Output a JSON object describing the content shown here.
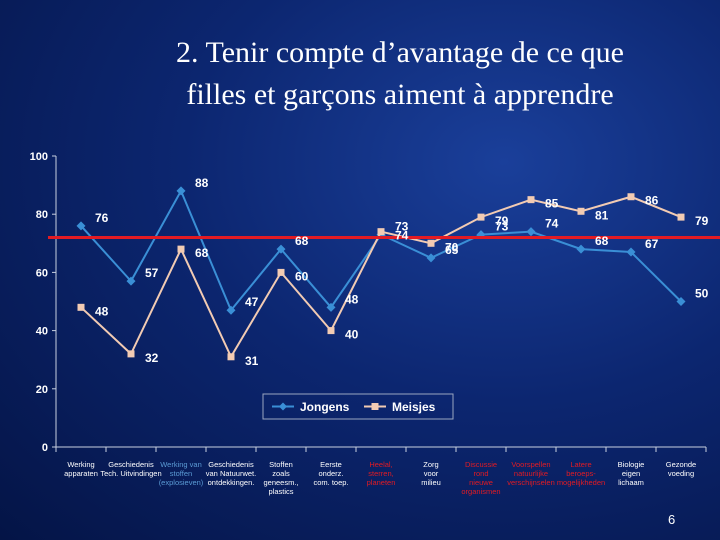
{
  "slide": {
    "title_line1": "2. Tenir compte d’avantage de ce que",
    "title_line2": "filles et garçons aiment à apprendre",
    "page_number": "6"
  },
  "chart_data": {
    "type": "line",
    "title": "",
    "xlabel": "",
    "ylabel": "",
    "ylim": [
      0,
      100
    ],
    "yticks": [
      "0",
      "20",
      "40",
      "60",
      "80",
      "100"
    ],
    "grid": false,
    "legend_position": "bottom-center",
    "reference_line": {
      "value": 72,
      "color": "#e31b23"
    },
    "categories": [
      {
        "lines": [
          "Werking",
          "apparaten"
        ],
        "color": "#ffffff"
      },
      {
        "lines": [
          "Geschiedenis",
          "Tech. Uitvindingen"
        ],
        "color": "#ffffff"
      },
      {
        "lines": [
          "Werking van",
          "stoffen",
          "(explosieven)"
        ],
        "color": "#5b9bd5"
      },
      {
        "lines": [
          "Geschiedenis",
          "van Natuurwet.",
          "ontdekkingen."
        ],
        "color": "#ffffff"
      },
      {
        "lines": [
          "Stoffen",
          "zoals",
          "geneesm.,",
          "plastics"
        ],
        "color": "#ffffff"
      },
      {
        "lines": [
          "Eerste",
          "onderz.",
          "com. toep."
        ],
        "color": "#ffffff"
      },
      {
        "lines": [
          "Heelal,",
          "sterren,",
          "planeten"
        ],
        "color": "#e31b23"
      },
      {
        "lines": [
          "Zorg",
          "voor",
          "milieu"
        ],
        "color": "#ffffff"
      },
      {
        "lines": [
          "Discussie",
          "rond",
          "nieuwe",
          "organismen"
        ],
        "color": "#e31b23"
      },
      {
        "lines": [
          "Voorspellen",
          "natuurlijke",
          "verschijnselen"
        ],
        "color": "#e31b23"
      },
      {
        "lines": [
          "Latere",
          "beroeps-",
          "mogelijkheden"
        ],
        "color": "#e31b23"
      },
      {
        "lines": [
          "Biologie",
          "eigen",
          "lichaam"
        ],
        "color": "#ffffff"
      },
      {
        "lines": [
          "Gezonde",
          "voeding"
        ],
        "color": "#ffffff"
      }
    ],
    "series": [
      {
        "name": "Jongens",
        "color": "#3a8fd6",
        "marker": "diamond",
        "values": [
          76,
          57,
          88,
          47,
          68,
          48,
          73,
          65,
          73,
          74,
          68,
          67,
          50
        ]
      },
      {
        "name": "Meisjes",
        "color": "#f2cbb3",
        "marker": "square",
        "values": [
          48,
          32,
          68,
          31,
          60,
          40,
          74,
          70,
          79,
          85,
          81,
          86,
          79
        ]
      }
    ]
  }
}
